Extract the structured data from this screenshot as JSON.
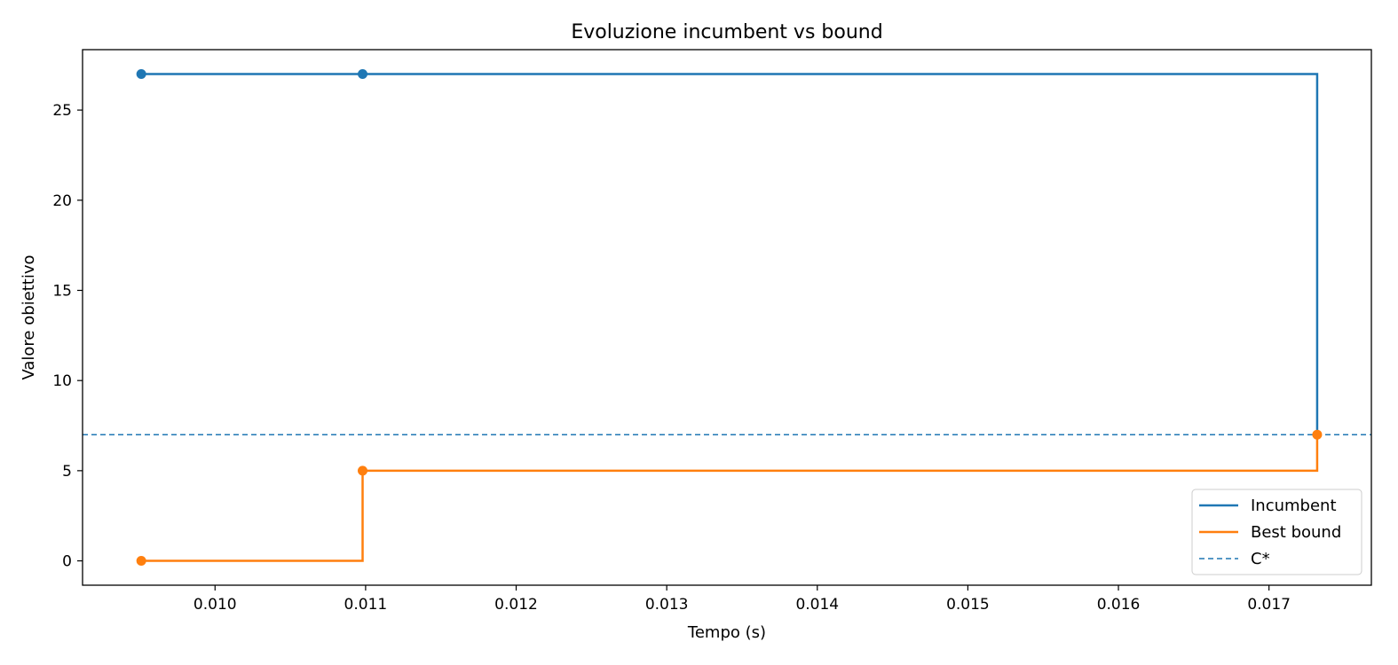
{
  "chart_data": {
    "type": "line",
    "title": "Evoluzione incumbent vs bound",
    "xlabel": "Tempo (s)",
    "ylabel": "Valore obiettivo",
    "xlim": [
      0.00912,
      0.01768
    ],
    "ylim": [
      -1.35,
      28.35
    ],
    "xticks": [
      0.01,
      0.011,
      0.012,
      0.013,
      0.014,
      0.015,
      0.016,
      0.017
    ],
    "xtick_labels": [
      "0.010",
      "0.011",
      "0.012",
      "0.013",
      "0.014",
      "0.015",
      "0.016",
      "0.017"
    ],
    "yticks": [
      0,
      5,
      10,
      15,
      20,
      25
    ],
    "ytick_labels": [
      "0",
      "5",
      "10",
      "15",
      "20",
      "25"
    ],
    "grid": false,
    "legend_position": "bottom-right",
    "series": [
      {
        "name": "Incumbent",
        "color": "#1f77b4",
        "step": "post",
        "x": [
          0.00951,
          0.01098,
          0.01732
        ],
        "y": [
          27,
          27,
          7
        ],
        "markers": [
          [
            0.00951,
            27
          ],
          [
            0.01098,
            27
          ]
        ]
      },
      {
        "name": "Best bound",
        "color": "#ff7f0e",
        "step": "post",
        "x": [
          0.00951,
          0.01098,
          0.01732
        ],
        "y": [
          0,
          5,
          7
        ],
        "markers": [
          [
            0.00951,
            0
          ],
          [
            0.01098,
            5
          ],
          [
            0.01732,
            7
          ]
        ]
      }
    ],
    "reference_line": {
      "name": "C*",
      "y": 7,
      "color": "#1f77b4",
      "style": "dashed"
    }
  }
}
